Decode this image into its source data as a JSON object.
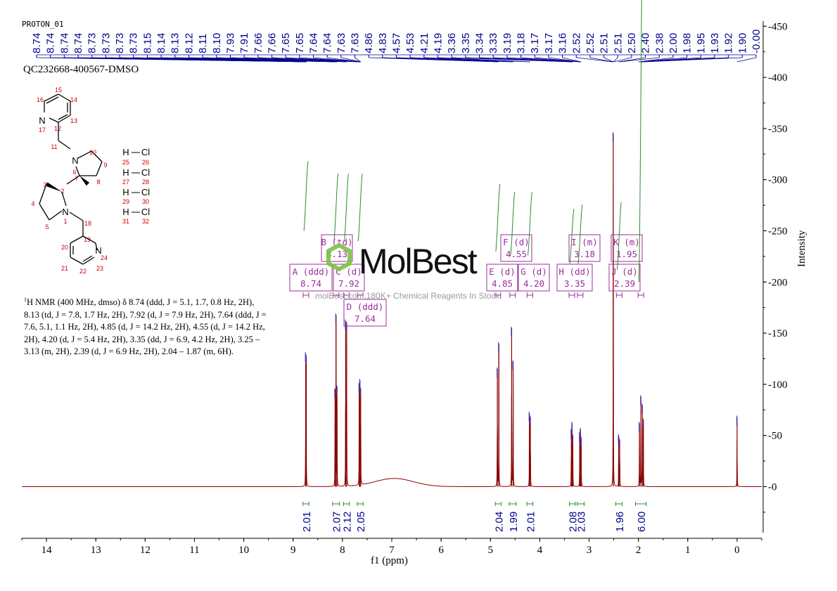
{
  "proton_label": "PROTON_01",
  "sample_name": "QC232668-400567-DMSO",
  "nmr_description": {
    "prefix_sup": "1",
    "text": "H NMR (400 MHz, dmso) δ 8.74 (ddd, J = 5.1, 1.7, 0.8 Hz, 2H), 8.13 (td, J = 7.8, 1.7 Hz, 2H), 7.92 (d, J = 7.9 Hz, 2H), 7.64 (ddd, J = 7.6, 5.1, 1.1 Hz, 2H), 4.85 (d, J = 14.2 Hz, 2H), 4.55 (d, J = 14.2 Hz, 2H), 4.20 (d, J = 5.4 Hz, 2H), 3.35 (dd, J = 6.9, 4.2 Hz, 2H), 3.25 – 3.13 (m, 2H), 2.39 (d, J = 6.9 Hz, 2H), 2.04 – 1.87 (m, 6H)."
  },
  "watermark": {
    "logo": "MolBest",
    "text": "molBest.com,180K+ Chemical Reagents In Stock."
  },
  "molecule": {
    "atom_labels": [
      "N",
      "N",
      "N",
      "N",
      "H",
      "Cl",
      "H",
      "Cl",
      "H",
      "Cl",
      "H",
      "Cl"
    ],
    "atom_numbers": [
      "1",
      "2",
      "3",
      "4",
      "5",
      "6",
      "7",
      "8",
      "9",
      "10",
      "11",
      "12",
      "13",
      "14",
      "15",
      "16",
      "17",
      "18",
      "19",
      "20",
      "21",
      "22",
      "23",
      "24",
      "25",
      "26",
      "27",
      "28",
      "29",
      "30",
      "31",
      "32"
    ]
  },
  "colors": {
    "spectrum": "#8b0000",
    "integral_curve": "#2e8b2e",
    "integral_label": "#00008b",
    "peak_label": "#00008b",
    "multiplet_box": "#9b2d9b",
    "multiplet_bracket": "#9b2d9b",
    "atom_number": "#cc0000",
    "watermark_hex": "#7dc142"
  },
  "chart_data": {
    "type": "line",
    "xlabel": "f1 (ppm)",
    "ylabel": "Intensity",
    "xlim": [
      14.5,
      -0.5
    ],
    "ylim": [
      -45,
      455
    ],
    "x_ticks": [
      "14",
      "13",
      "12",
      "11",
      "10",
      "9",
      "8",
      "7",
      "6",
      "5",
      "4",
      "3",
      "2",
      "1",
      "0"
    ],
    "y_ticks": [
      "450",
      "400",
      "350",
      "300",
      "250",
      "200",
      "150",
      "100",
      "50",
      "0"
    ],
    "peak_labels": [
      "8.74",
      "8.74",
      "8.74",
      "8.74",
      "8.73",
      "8.73",
      "8.73",
      "8.73",
      "8.15",
      "8.14",
      "8.13",
      "8.12",
      "8.11",
      "8.10",
      "7.93",
      "7.91",
      "7.66",
      "7.66",
      "7.65",
      "7.65",
      "7.64",
      "7.64",
      "7.63",
      "7.63",
      "4.86",
      "4.83",
      "4.57",
      "4.53",
      "4.21",
      "4.19",
      "3.36",
      "3.35",
      "3.34",
      "3.33",
      "3.19",
      "3.18",
      "3.17",
      "3.17",
      "3.16",
      "2.52",
      "2.52",
      "2.51",
      "2.51",
      "2.50",
      "2.40",
      "2.38",
      "2.00",
      "1.98",
      "1.95",
      "1.93",
      "1.92",
      "1.90",
      "-0.00"
    ],
    "peaks": [
      {
        "ppm": 8.745,
        "height": 130
      },
      {
        "ppm": 8.735,
        "height": 128
      },
      {
        "ppm": 8.15,
        "height": 95
      },
      {
        "ppm": 8.13,
        "height": 168
      },
      {
        "ppm": 8.11,
        "height": 98
      },
      {
        "ppm": 7.935,
        "height": 162
      },
      {
        "ppm": 7.915,
        "height": 160
      },
      {
        "ppm": 7.66,
        "height": 100
      },
      {
        "ppm": 7.645,
        "height": 104
      },
      {
        "ppm": 7.63,
        "height": 96
      },
      {
        "ppm": 4.86,
        "height": 115
      },
      {
        "ppm": 4.83,
        "height": 140
      },
      {
        "ppm": 4.57,
        "height": 155
      },
      {
        "ppm": 4.54,
        "height": 122
      },
      {
        "ppm": 4.21,
        "height": 72
      },
      {
        "ppm": 4.19,
        "height": 68
      },
      {
        "ppm": 3.36,
        "height": 55
      },
      {
        "ppm": 3.345,
        "height": 62
      },
      {
        "ppm": 3.33,
        "height": 50
      },
      {
        "ppm": 3.19,
        "height": 52
      },
      {
        "ppm": 3.175,
        "height": 55
      },
      {
        "ppm": 3.16,
        "height": 48
      },
      {
        "ppm": 2.51,
        "height": 345
      },
      {
        "ppm": 2.4,
        "height": 50
      },
      {
        "ppm": 2.38,
        "height": 46
      },
      {
        "ppm": 1.98,
        "height": 62
      },
      {
        "ppm": 1.95,
        "height": 88
      },
      {
        "ppm": 1.92,
        "height": 80
      },
      {
        "ppm": 1.9,
        "height": 65
      },
      {
        "ppm": 0.0,
        "height": 68
      }
    ],
    "water_hump": {
      "ppm": 6.95,
      "height": 8,
      "width": 0.55
    },
    "integrals": [
      {
        "from": 8.8,
        "to": 8.68,
        "value": "2.01"
      },
      {
        "from": 8.2,
        "to": 8.06,
        "value": "2.07"
      },
      {
        "from": 7.98,
        "to": 7.86,
        "value": "2.12"
      },
      {
        "from": 7.7,
        "to": 7.58,
        "value": "2.05"
      },
      {
        "from": 4.9,
        "to": 4.78,
        "value": "2.04"
      },
      {
        "from": 4.62,
        "to": 4.48,
        "value": "1.99"
      },
      {
        "from": 4.26,
        "to": 4.14,
        "value": "2.01"
      },
      {
        "from": 3.4,
        "to": 3.28,
        "value": "2.08"
      },
      {
        "from": 3.24,
        "to": 3.1,
        "value": "2.03"
      },
      {
        "from": 2.46,
        "to": 2.33,
        "value": "1.96"
      },
      {
        "from": 2.06,
        "to": 1.84,
        "value": "6.00"
      }
    ],
    "multiplets": [
      {
        "id": "A",
        "mult": "(ddd)",
        "shift": "8.74",
        "ppm": 8.74
      },
      {
        "id": "B",
        "mult": "(td)",
        "shift": "8.13",
        "ppm": 8.13
      },
      {
        "id": "C",
        "mult": "(d)",
        "shift": "7.92",
        "ppm": 7.92
      },
      {
        "id": "D",
        "mult": "(ddd)",
        "shift": "7.64",
        "ppm": 7.64
      },
      {
        "id": "E",
        "mult": "(d)",
        "shift": "4.85",
        "ppm": 4.85
      },
      {
        "id": "F",
        "mult": "(d)",
        "shift": "4.55",
        "ppm": 4.55
      },
      {
        "id": "G",
        "mult": "(d)",
        "shift": "4.20",
        "ppm": 4.2
      },
      {
        "id": "H",
        "mult": "(dd)",
        "shift": "3.35",
        "ppm": 3.35
      },
      {
        "id": "I",
        "mult": "(m)",
        "shift": "3.18",
        "ppm": 3.18
      },
      {
        "id": "J",
        "mult": "(d)",
        "shift": "2.39",
        "ppm": 2.39
      },
      {
        "id": "K",
        "mult": "(m)",
        "shift": "1.95",
        "ppm": 1.95
      }
    ]
  }
}
